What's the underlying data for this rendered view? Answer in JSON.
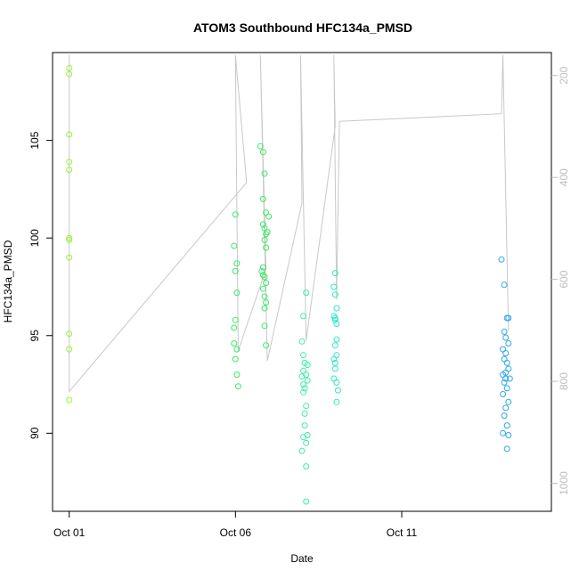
{
  "chart_data": {
    "type": "scatter",
    "title": "ATOM3 Southbound HFC134a_PMSD",
    "xlabel": "Date",
    "ylabel": "HFC134a_PMSD",
    "x_ticks": [
      {
        "date": "2016-10-01",
        "label": "Oct 01"
      },
      {
        "date": "2016-10-06",
        "label": "Oct 06"
      },
      {
        "date": "2016-10-11",
        "label": "Oct 11"
      }
    ],
    "y_ticks": [
      90,
      95,
      100,
      105
    ],
    "y2_ticks": [
      200,
      400,
      600,
      800,
      1000
    ],
    "xlim": [
      "2016-09-30T12:00",
      "2016-10-15T12:00"
    ],
    "ylim": [
      86.0,
      109.5
    ],
    "y2lim": [
      1055,
      155
    ],
    "y2_color": "#bdbdbd",
    "grid": false,
    "series": [
      {
        "color": "#9cf03f",
        "x": [
          "2016-10-01T00:00",
          "2016-10-01T00:00",
          "2016-10-01T00:00",
          "2016-10-01T00:00",
          "2016-10-01T00:00",
          "2016-10-01T00:00",
          "2016-10-01T00:00",
          "2016-10-01T00:00",
          "2016-10-01T00:00",
          "2016-10-01T00:00",
          "2016-10-01T00:00",
          "2016-10-01T00:00"
        ],
        "y": [
          108.7,
          108.4,
          105.3,
          103.9,
          103.5,
          100.0,
          99.9,
          99.0,
          95.1,
          94.3,
          91.7,
          100.0
        ]
      },
      {
        "color": "#3de866",
        "x": [
          "2016-10-06T00:00",
          "2016-10-06T00:00",
          "2016-10-06T00:00",
          "2016-10-06T00:00",
          "2016-10-06T00:00",
          "2016-10-06T00:00",
          "2016-10-06T00:00",
          "2016-10-06T00:00",
          "2016-10-06T00:00",
          "2016-10-06T00:00",
          "2016-10-06T00:00",
          "2016-10-06T00:00",
          "2016-10-06T00:00",
          "2016-10-06T00:00",
          "2016-10-06T00:00",
          "2016-10-06T00:00",
          "2016-10-06T00:00",
          "2016-10-06T00:00",
          "2016-10-06T00:00",
          "2016-10-06T00:00",
          "2016-10-06T00:00",
          "2016-10-06T00:00",
          "2016-10-06T00:00",
          "2016-10-06T00:00",
          "2016-10-06T00:00",
          "2016-10-06T00:00",
          "2016-10-06T00:00",
          "2016-10-06T00:00",
          "2016-10-06T00:00",
          "2016-10-06T00:00",
          "2016-10-06T00:00",
          "2016-10-06T00:00",
          "2016-10-06T00:00",
          "2016-10-06T00:00",
          "2016-10-06T00:00"
        ],
        "y": [
          101.2,
          99.6,
          98.7,
          98.3,
          97.2,
          95.8,
          95.4,
          94.6,
          94.3,
          93.8,
          93.0,
          92.4,
          104.7,
          104.4,
          103.3,
          102.0,
          101.3,
          100.7,
          100.5,
          100.2,
          99.9,
          99.5,
          98.5,
          98.3,
          98.0,
          97.7,
          97.4,
          97.0,
          96.7,
          96.4,
          95.5,
          94.5,
          101.1,
          100.3,
          98.1
        ],
        "x_hours": [
          0,
          -1,
          1,
          0,
          1,
          0,
          -1,
          -1,
          1,
          0,
          1,
          2,
          18,
          20,
          21,
          20,
          22,
          20,
          21,
          22,
          21,
          22,
          20,
          19,
          21,
          22,
          20,
          21,
          22,
          21,
          21,
          22,
          24,
          23,
          20
        ]
      },
      {
        "color": "#3deea6",
        "x_day": "2016-10-08",
        "y": [
          94.7,
          94.0,
          93.6,
          93.2,
          92.9,
          92.5,
          92.3,
          92.1,
          91.4,
          90.4,
          89.8,
          89.1,
          88.3,
          86.5,
          93.5,
          93.0,
          92.7,
          91.0,
          89.9,
          89.5,
          96.0,
          97.2
        ],
        "x_hours": [
          0,
          1,
          2,
          1,
          0,
          1,
          2,
          1,
          3,
          2,
          1,
          0,
          3,
          3,
          4,
          3,
          4,
          2,
          4,
          3,
          1,
          3
        ]
      },
      {
        "color": "#30e8c6",
        "x_day": "2016-10-08",
        "y": [
          98.2,
          97.5,
          97.1,
          96.4,
          96.0,
          95.8,
          95.6,
          94.8,
          94.5,
          94.0,
          93.8,
          93.3,
          92.8,
          92.6,
          92.2,
          91.6,
          95.9,
          93.6
        ],
        "x_hours": [
          24,
          23,
          24,
          25,
          23,
          24,
          25,
          25,
          24,
          25,
          23,
          24,
          23,
          25,
          26,
          25,
          24,
          24
        ]
      },
      {
        "color": "#2fa8e6",
        "x_day": "2016-10-14",
        "y": [
          98.9,
          97.6,
          95.9,
          95.2,
          94.9,
          94.6,
          94.3,
          94.1,
          93.8,
          93.6,
          93.3,
          93.0,
          92.8,
          92.6,
          92.3,
          92.0,
          91.6,
          91.3,
          90.9,
          90.4,
          90.0,
          89.9,
          89.2,
          95.9,
          93.1,
          92.8
        ],
        "x_hours": [
          0,
          2,
          4,
          2,
          3,
          5,
          1,
          3,
          2,
          4,
          5,
          1,
          3,
          2,
          4,
          1,
          5,
          3,
          2,
          4,
          1,
          5,
          4,
          5,
          3,
          6
        ]
      }
    ],
    "altitude_trace": {
      "color": "#c8c8c8",
      "points": [
        [
          "2016-10-01T00:00",
          160
        ],
        [
          "2016-10-01T00:00",
          500
        ],
        [
          "2016-10-01T00:00",
          820
        ],
        [
          "2016-10-06T08:00",
          410
        ],
        [
          "2016-10-06T00:00",
          160
        ],
        [
          "2016-10-06T02:00",
          740
        ],
        [
          "2016-10-06T22:00",
          580
        ],
        [
          "2016-10-06T18:00",
          160
        ],
        [
          "2016-10-06T23:00",
          760
        ],
        [
          "2016-10-08T00:00",
          450
        ],
        [
          "2016-10-07T23:00",
          160
        ],
        [
          "2016-10-08T03:00",
          720
        ],
        [
          "2016-10-09T00:00",
          300
        ],
        [
          "2016-10-08T23:00",
          160
        ],
        [
          "2016-10-09T01:00",
          640
        ],
        [
          "2016-10-09T03:00",
          290
        ],
        [
          "2016-10-14T00:00",
          275
        ],
        [
          "2016-10-14T01:00",
          160
        ],
        [
          "2016-10-14T05:00",
          700
        ]
      ]
    }
  }
}
